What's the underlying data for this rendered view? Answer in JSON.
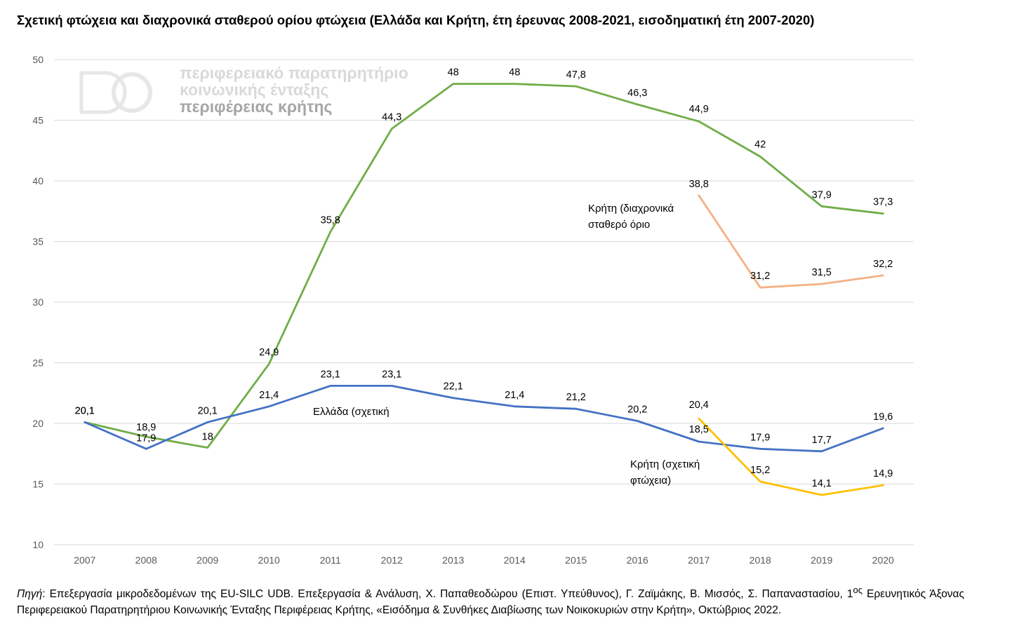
{
  "title": "Σχετική φτώχεια και διαχρονικά σταθερού ορίου φτώχεια (Ελλάδα και Κρήτη, έτη έρευνας 2008-2021, εισοδηματική έτη 2007-2020)",
  "logo": {
    "line1": "περιφερειακό παρατηρητήριο",
    "line2": "κοινωνικής ένταξης",
    "line3": "περιφέρειας κρήτης"
  },
  "note": {
    "source_label": "Πηγή",
    "text": ": Επεξεργασία μικροδεδομένων της EU-SILC UDB. Επεξεργασία & Ανάλυση, Χ. Παπαθεοδώρου (Επιστ. Υπεύθυνος), Γ. Ζαϊμάκης, Β. Μισσός, Σ. Παπαναστασίου, 1",
    "superscript": "ος",
    "text2": " Ερευνητικός Άξονας Περιφερειακού Παρατηρητήριου Κοινωνικής Ένταξης Περιφέρειας Κρήτης, «Εισόδημα & Συνθήκες Διαβίωσης των Νοικοκυριών στην Κρήτη», Οκτώβριος 2022."
  },
  "colors": {
    "greece_fixed": "#70AD47",
    "greece_relative": "#4472C4",
    "crete_fixed": "#F4B183",
    "crete_relative": "#FFC000",
    "grid": "#d9d9d9",
    "axis_text": "#595959"
  },
  "chart_data": {
    "type": "line",
    "x": [
      "2007",
      "2008",
      "2009",
      "2010",
      "2011",
      "2012",
      "2013",
      "2014",
      "2015",
      "2016",
      "2017",
      "2018",
      "2019",
      "2020"
    ],
    "ylim": [
      10,
      50
    ],
    "yticks": [
      10,
      15,
      20,
      25,
      30,
      35,
      40,
      45,
      50
    ],
    "grid": true,
    "series": [
      {
        "key": "greece_fixed",
        "values": [
          20.1,
          18.9,
          18,
          24.9,
          35.8,
          44.3,
          48,
          48,
          47.8,
          46.3,
          44.9,
          42,
          37.9,
          37.3
        ],
        "labels": [
          "20,1",
          "18,9",
          "18",
          "24,9",
          "35,8",
          "44,3",
          "48",
          "48",
          "47,8",
          "46,3",
          "44,9",
          "42",
          "37,9",
          "37,3"
        ]
      },
      {
        "key": "greece_relative",
        "name": "Ελλάδα (σχετική",
        "values": [
          20.1,
          17.9,
          20.1,
          21.4,
          23.1,
          23.1,
          22.1,
          21.4,
          21.2,
          20.2,
          18.5,
          17.9,
          17.7,
          19.6
        ],
        "labels": [
          "20,1",
          "17,9",
          "20,1",
          "21,4",
          "23,1",
          "23,1",
          "22,1",
          "21,4",
          "21,2",
          "20,2",
          "18,5",
          "17,9",
          "17,7",
          "19,6"
        ]
      },
      {
        "key": "crete_fixed",
        "name": "Κρήτη (διαχρονικά σταθερό όριο",
        "values": [
          null,
          null,
          null,
          null,
          null,
          null,
          null,
          null,
          null,
          null,
          38.8,
          31.2,
          31.5,
          32.2
        ],
        "labels": [
          null,
          null,
          null,
          null,
          null,
          null,
          null,
          null,
          null,
          null,
          "38,8",
          "31,2",
          "31,5",
          "32,2"
        ]
      },
      {
        "key": "crete_relative",
        "name": "Κρήτη (σχετική φτώχεια)",
        "values": [
          null,
          null,
          null,
          null,
          null,
          null,
          null,
          null,
          null,
          null,
          20.4,
          15.2,
          14.1,
          14.9
        ],
        "labels": [
          null,
          null,
          null,
          null,
          null,
          null,
          null,
          null,
          null,
          null,
          "20,4",
          "15,2",
          "14,1",
          "14,9"
        ]
      }
    ],
    "annotations": [
      {
        "text_lines": [
          "Κρήτη (διαχρονικά",
          "σταθερό όριο"
        ]
      },
      {
        "text_lines": [
          "Ελλάδα (σχετική"
        ]
      },
      {
        "text_lines": [
          "Κρήτη (σχετική",
          "φτώχεια)"
        ]
      }
    ]
  }
}
